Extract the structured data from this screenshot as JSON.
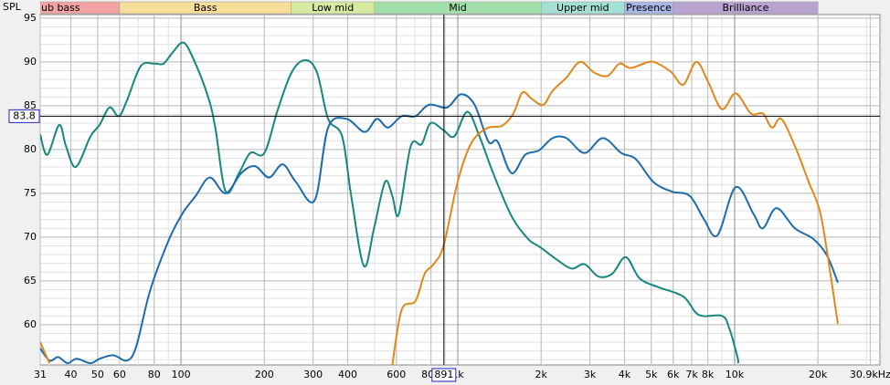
{
  "chart_data": {
    "type": "line",
    "y_label": "SPL",
    "xscale": "log",
    "grid": true,
    "xlim": [
      31,
      33500
    ],
    "ylim": [
      55.4,
      95.4
    ],
    "xticks": [
      31,
      40,
      50,
      60,
      80,
      100,
      200,
      300,
      400,
      600,
      800,
      {
        "value": 1000,
        "label": "1k"
      },
      {
        "value": 2000,
        "label": "2k"
      },
      {
        "value": 3000,
        "label": "3k"
      },
      {
        "value": 4000,
        "label": "4k"
      },
      {
        "value": 5000,
        "label": "5k"
      },
      {
        "value": 6000,
        "label": "6k"
      },
      {
        "value": 7000,
        "label": "7k"
      },
      {
        "value": 8000,
        "label": "8k"
      },
      {
        "value": 10000,
        "label": "10k"
      },
      {
        "value": 20000,
        "label": "20k"
      },
      {
        "value": 30900,
        "label": "30.9kHz"
      }
    ],
    "yticks": [
      60,
      65,
      70,
      75,
      80,
      85,
      90,
      95
    ],
    "bands": [
      {
        "label": "ub bass",
        "from": 20,
        "to": 60,
        "color": "#f3a3a3"
      },
      {
        "label": "Bass",
        "from": 60,
        "to": 250,
        "color": "#f6dd98"
      },
      {
        "label": "Low mid",
        "from": 250,
        "to": 500,
        "color": "#d5eb9f"
      },
      {
        "label": "Mid",
        "from": 500,
        "to": 2000,
        "color": "#a2e0a9"
      },
      {
        "label": "Upper mid",
        "from": 2000,
        "to": 4000,
        "color": "#a3e0d6"
      },
      {
        "label": "Presence",
        "from": 4000,
        "to": 6000,
        "color": "#a9b6e6"
      },
      {
        "label": "Brilliance",
        "from": 6000,
        "to": 20000,
        "color": "#b9a3d2"
      }
    ],
    "cursor": {
      "x": 891,
      "y": 83.8
    },
    "series": [
      {
        "color": "#16877f",
        "x": [
          31,
          32.9,
          36.3,
          38.4,
          41.7,
          47.1,
          50.8,
          55.2,
          59.6,
          63.8,
          71.5,
          80.2,
          86.5,
          93.4,
          102,
          111,
          125,
          133,
          145,
          162,
          178,
          200,
          224,
          251,
          281,
          310,
          340,
          382,
          412,
          458,
          498,
          546,
          580,
          612,
          676,
          740,
          797,
          888,
          972,
          1082,
          1197,
          1342,
          1563,
          1793,
          1993,
          2284,
          2580,
          2870,
          3218,
          3609,
          4044,
          4534,
          5280,
          6530,
          7430,
          9000,
          9560,
          10240,
          10300
        ],
        "values": [
          81.7,
          79.4,
          82.8,
          80.4,
          78.0,
          81.5,
          82.8,
          84.8,
          83.8,
          85.6,
          89.5,
          89.8,
          89.8,
          91.1,
          92.2,
          90.3,
          86.1,
          82.5,
          75.2,
          77.3,
          79.6,
          79.6,
          84.6,
          88.8,
          90.2,
          88.8,
          83.5,
          81.5,
          74.7,
          66.7,
          71.0,
          76.3,
          74.7,
          72.6,
          80.4,
          80.6,
          83.0,
          82.2,
          81.5,
          84.3,
          81.5,
          77.3,
          72.4,
          69.8,
          68.8,
          67.4,
          66.4,
          66.9,
          65.5,
          65.8,
          67.7,
          65.3,
          64.3,
          63.2,
          61.1,
          61.0,
          59.6,
          56.3,
          55.6
        ]
      },
      {
        "color": "#1c6cad",
        "x": [
          31,
          33.5,
          36,
          38.9,
          42,
          47.1,
          50.8,
          57,
          63.8,
          68.9,
          77.2,
          89.9,
          100.8,
          113,
          127,
          145,
          165,
          185,
          208,
          233,
          260,
          304,
          340,
          396,
          461,
          510,
          559,
          627,
          703,
          786,
          915,
          1026,
          1150,
          1290,
          1392,
          1563,
          1752,
          1965,
          2201,
          2467,
          2870,
          3343,
          3896,
          4395,
          5083,
          5920,
          6889,
          7730,
          8670,
          10090,
          11720,
          12650,
          14170,
          16510,
          19220,
          21560,
          23600
        ],
        "values": [
          57.3,
          55.9,
          56.3,
          55.6,
          56.1,
          55.6,
          56.1,
          56.5,
          55.9,
          57.5,
          63.8,
          69.5,
          72.6,
          74.7,
          76.8,
          75.0,
          77.3,
          78.1,
          76.8,
          78.3,
          76.3,
          74.2,
          82.5,
          83.5,
          82.0,
          83.5,
          82.5,
          83.8,
          83.8,
          85.1,
          84.8,
          86.3,
          85.1,
          80.9,
          80.9,
          77.3,
          79.4,
          79.9,
          81.3,
          81.3,
          79.6,
          81.3,
          79.6,
          78.9,
          76.3,
          75.2,
          74.7,
          72.1,
          70.2,
          75.7,
          72.6,
          71.0,
          73.3,
          71.0,
          69.8,
          67.9,
          64.8
        ]
      },
      {
        "color": "#e0881c",
        "x": [
          31,
          32.3,
          33.5,
          100,
          580,
          627,
          703,
          759,
          818,
          888,
          988,
          1066,
          1150,
          1290,
          1445,
          1587,
          1711,
          1846,
          2034,
          2201,
          2467,
          2767,
          3102,
          3478,
          3836,
          4209,
          4895,
          5280,
          5920,
          6530,
          7270,
          8030,
          9000,
          10090,
          11460,
          12650,
          13650,
          14730,
          16510,
          18520,
          20270,
          21560,
          23600
        ],
        "values": [
          58.0,
          56.7,
          55.6,
          null,
          55.4,
          61.7,
          62.7,
          65.8,
          66.9,
          69.0,
          75.7,
          79.2,
          81.3,
          82.5,
          82.7,
          84.1,
          86.5,
          85.8,
          85.1,
          86.7,
          88.2,
          90.0,
          88.8,
          88.4,
          89.8,
          89.3,
          90.0,
          89.8,
          88.8,
          87.4,
          90.0,
          87.7,
          84.6,
          86.4,
          84.1,
          84.1,
          82.5,
          83.5,
          80.4,
          76.3,
          73.1,
          68.4,
          60.1
        ]
      }
    ]
  }
}
